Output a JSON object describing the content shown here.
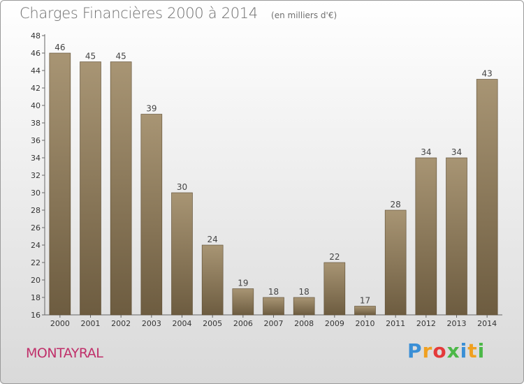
{
  "chart_data": {
    "type": "bar",
    "title": "Charges Financières 2000 à 2014",
    "subtitle": "(en milliers d'€)",
    "categories": [
      "2000",
      "2001",
      "2002",
      "2003",
      "2004",
      "2005",
      "2006",
      "2007",
      "2008",
      "2009",
      "2010",
      "2011",
      "2012",
      "2013",
      "2014"
    ],
    "values": [
      46,
      45,
      45,
      39,
      30,
      24,
      19,
      18,
      18,
      22,
      17,
      28,
      34,
      34,
      43
    ],
    "ylim": [
      16,
      48
    ],
    "yticks": [
      16,
      18,
      20,
      22,
      24,
      26,
      28,
      30,
      32,
      34,
      36,
      38,
      40,
      42,
      44,
      46,
      48
    ],
    "grid": false,
    "bar_color": "#8a785a"
  },
  "commune": "MONTAYRAL",
  "logo": {
    "letters": [
      "P",
      "r",
      "o",
      "x",
      "i",
      "t",
      "i"
    ],
    "colors": [
      "#3a8fd6",
      "#f0a020",
      "#e43a3a",
      "#4cb848",
      "#3a8fd6",
      "#f0a020",
      "#4cb848"
    ]
  }
}
